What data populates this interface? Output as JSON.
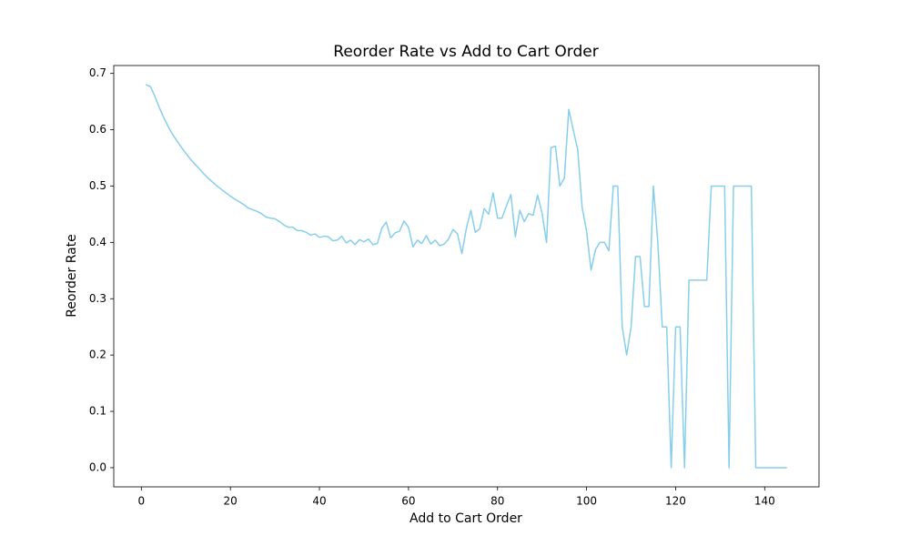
{
  "chart_data": {
    "type": "line",
    "title": "Reorder Rate vs Add to Cart Order",
    "xlabel": "Add to Cart Order",
    "ylabel": "Reorder Rate",
    "x": [
      1,
      2,
      3,
      4,
      5,
      6,
      7,
      8,
      9,
      10,
      11,
      12,
      13,
      14,
      15,
      16,
      17,
      18,
      19,
      20,
      21,
      22,
      23,
      24,
      25,
      26,
      27,
      28,
      29,
      30,
      31,
      32,
      33,
      34,
      35,
      36,
      37,
      38,
      39,
      40,
      41,
      42,
      43,
      44,
      45,
      46,
      47,
      48,
      49,
      50,
      51,
      52,
      53,
      54,
      55,
      56,
      57,
      58,
      59,
      60,
      61,
      62,
      63,
      64,
      65,
      66,
      67,
      68,
      69,
      70,
      71,
      72,
      73,
      74,
      75,
      76,
      77,
      78,
      79,
      80,
      81,
      82,
      83,
      84,
      85,
      86,
      87,
      88,
      89,
      90,
      91,
      92,
      93,
      94,
      95,
      96,
      97,
      98,
      99,
      100,
      101,
      102,
      103,
      104,
      105,
      106,
      107,
      108,
      109,
      110,
      111,
      112,
      113,
      114,
      115,
      116,
      117,
      118,
      119,
      120,
      121,
      122,
      123,
      124,
      125,
      126,
      127,
      128,
      129,
      130,
      131,
      132,
      133,
      134,
      135,
      136,
      137,
      138,
      139,
      140,
      141,
      142,
      143,
      144,
      145
    ],
    "series": [
      {
        "name": "Reorder Rate",
        "color": "#87ceeb",
        "values": [
          0.68,
          0.677,
          0.66,
          0.64,
          0.622,
          0.606,
          0.592,
          0.58,
          0.569,
          0.558,
          0.548,
          0.539,
          0.531,
          0.522,
          0.514,
          0.507,
          0.5,
          0.494,
          0.488,
          0.482,
          0.477,
          0.472,
          0.467,
          0.461,
          0.458,
          0.455,
          0.451,
          0.445,
          0.443,
          0.442,
          0.437,
          0.431,
          0.427,
          0.427,
          0.421,
          0.421,
          0.418,
          0.413,
          0.415,
          0.409,
          0.411,
          0.41,
          0.403,
          0.404,
          0.411,
          0.399,
          0.404,
          0.396,
          0.405,
          0.401,
          0.406,
          0.396,
          0.398,
          0.425,
          0.436,
          0.408,
          0.417,
          0.42,
          0.438,
          0.427,
          0.392,
          0.404,
          0.398,
          0.412,
          0.397,
          0.404,
          0.394,
          0.397,
          0.406,
          0.423,
          0.415,
          0.38,
          0.425,
          0.457,
          0.418,
          0.424,
          0.46,
          0.45,
          0.488,
          0.443,
          0.443,
          0.465,
          0.485,
          0.41,
          0.457,
          0.437,
          0.451,
          0.448,
          0.484,
          0.452,
          0.4,
          0.568,
          0.571,
          0.5,
          0.514,
          0.636,
          0.6,
          0.565,
          0.462,
          0.42,
          0.351,
          0.387,
          0.4,
          0.4,
          0.385,
          0.5,
          0.5,
          0.25,
          0.2,
          0.25,
          0.375,
          0.375,
          0.286,
          0.286,
          0.5,
          0.4,
          0.25,
          0.25,
          0,
          0.25,
          0.25,
          0,
          0.333,
          0.333,
          0.333,
          0.333,
          0.333,
          0.5,
          0.5,
          0.5,
          0.5,
          0,
          0.5,
          0.5,
          0.5,
          0.5,
          0.5,
          0,
          0,
          0,
          0,
          0,
          0,
          0,
          0
        ]
      }
    ],
    "xlim": [
      -6.2,
      152.2
    ],
    "ylim": [
      -0.034,
      0.714
    ],
    "xticks": [
      0,
      20,
      40,
      60,
      80,
      100,
      120,
      140
    ],
    "yticks": [
      {
        "value": 0,
        "label": "0.0"
      },
      0.1,
      0.2,
      0.3,
      0.4,
      0.5,
      0.6,
      0.7
    ]
  }
}
